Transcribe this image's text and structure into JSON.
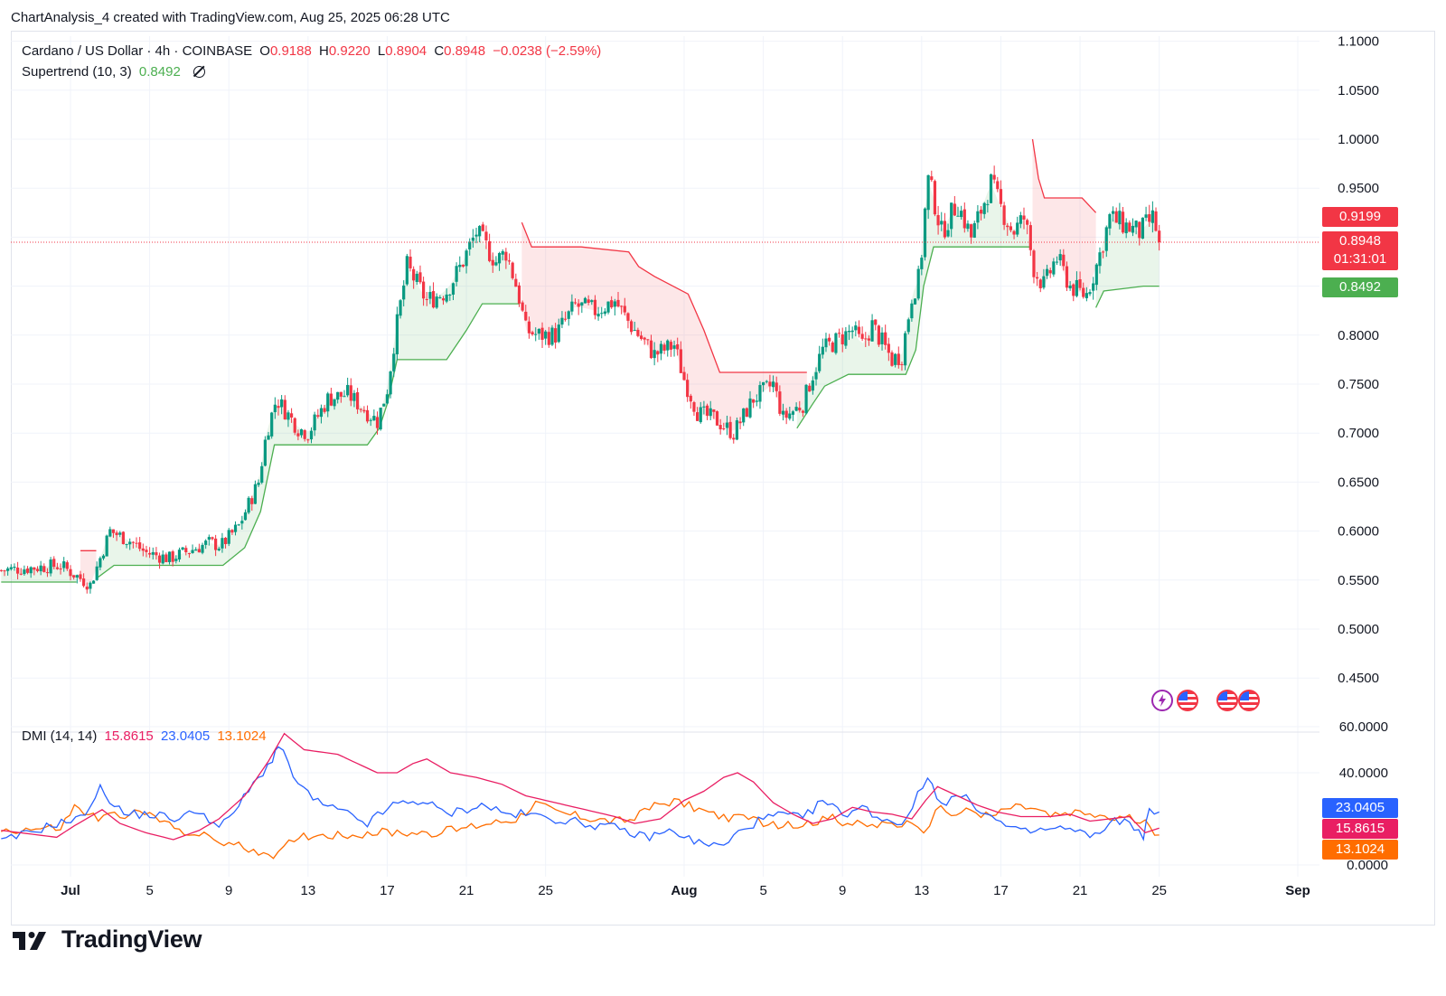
{
  "caption": "ChartAnalysis_4 created with TradingView.com, Aug 25, 2025 06:28 UTC",
  "brand": {
    "name": "TradingView",
    "logo": "tradingview-logo"
  },
  "colors": {
    "up": "#089981",
    "down": "#f23645",
    "supertrend_up": "#4caf50",
    "supertrend_down": "#f23645",
    "dmi_plus": "#2962ff",
    "dmi_minus": "#ff6d00",
    "adx": "#e91e63",
    "grid": "#f0f3fa"
  },
  "legend": {
    "symbol": "Cardano / US Dollar · 4h · COINBASE",
    "o_label": "O",
    "o_value": "0.9188",
    "h_label": "H",
    "h_value": "0.9220",
    "l_label": "L",
    "l_value": "0.8904",
    "c_label": "C",
    "c_value": "0.8948",
    "change": "−0.0238 (−2.59%)",
    "indicator_name": "Supertrend (10, 3)",
    "indicator_value": "0.8492",
    "indicator_icon": "eye-off-icon"
  },
  "dmi_legend": {
    "name": "DMI (14, 14)",
    "adx": "15.8615",
    "plus_di": "23.0405",
    "minus_di": "13.1024"
  },
  "price_tags": {
    "supertrend_upper": "0.9199",
    "last": "0.8948",
    "countdown": "01:31:01",
    "supertrend": "0.8492"
  },
  "dmi_tags": {
    "plus_di": "23.0405",
    "adx": "15.8615",
    "minus_di": "13.1024"
  },
  "event_icons": [
    "lightning-icon",
    "us-flag-icon",
    "us-flag-icon",
    "us-flag-icon"
  ],
  "chart_data": {
    "type": "candlestick",
    "price_axis": {
      "ticks": [
        "1.1000",
        "1.0500",
        "1.0000",
        "0.9500",
        "0.9000",
        "0.8500",
        "0.8000",
        "0.7500",
        "0.7000",
        "0.6500",
        "0.6000",
        "0.5500",
        "0.5000",
        "0.4500"
      ],
      "range": [
        0.405,
        1.105
      ]
    },
    "dmi_axis": {
      "ticks": [
        "60.0000",
        "40.0000",
        "0.0000"
      ],
      "range": [
        0,
        60
      ]
    },
    "time_axis": [
      "Jul",
      "5",
      "9",
      "13",
      "17",
      "21",
      "25",
      "Aug",
      "5",
      "9",
      "13",
      "17",
      "21",
      "25",
      "Sep"
    ],
    "time_axis_days": [
      1,
      5,
      9,
      13,
      17,
      21,
      25,
      32,
      36,
      40,
      44,
      48,
      52,
      56,
      63
    ],
    "first_candle_day": -2.5,
    "last_price": 0.8948,
    "close_path": [
      [
        -2.5,
        0.56
      ],
      [
        0.5,
        0.565
      ],
      [
        2.0,
        0.545
      ],
      [
        3.0,
        0.6
      ],
      [
        4.0,
        0.59
      ],
      [
        4.8,
        0.578
      ],
      [
        6.0,
        0.572
      ],
      [
        8.0,
        0.588
      ],
      [
        8.6,
        0.585
      ],
      [
        9.5,
        0.605
      ],
      [
        10.5,
        0.65
      ],
      [
        10.9,
        0.7
      ],
      [
        11.4,
        0.735
      ],
      [
        12.5,
        0.705
      ],
      [
        13.0,
        0.7
      ],
      [
        14.0,
        0.735
      ],
      [
        15.0,
        0.74
      ],
      [
        16.5,
        0.712
      ],
      [
        17.0,
        0.745
      ],
      [
        17.4,
        0.8
      ],
      [
        18.0,
        0.87
      ],
      [
        19.0,
        0.835
      ],
      [
        20.0,
        0.845
      ],
      [
        20.7,
        0.87
      ],
      [
        21.5,
        0.905
      ],
      [
        22.5,
        0.875
      ],
      [
        23.0,
        0.885
      ],
      [
        23.6,
        0.845
      ],
      [
        24.0,
        0.805
      ],
      [
        24.6,
        0.8
      ],
      [
        25.5,
        0.8
      ],
      [
        26.5,
        0.83
      ],
      [
        27.5,
        0.825
      ],
      [
        28.5,
        0.835
      ],
      [
        29.3,
        0.81
      ],
      [
        30.5,
        0.78
      ],
      [
        31.5,
        0.79
      ],
      [
        32.0,
        0.755
      ],
      [
        32.7,
        0.72
      ],
      [
        33.5,
        0.715
      ],
      [
        34.5,
        0.7
      ],
      [
        35.5,
        0.735
      ],
      [
        36.5,
        0.75
      ],
      [
        37.0,
        0.715
      ],
      [
        38.0,
        0.73
      ],
      [
        38.5,
        0.76
      ],
      [
        39.0,
        0.785
      ],
      [
        40.5,
        0.805
      ],
      [
        41.0,
        0.79
      ],
      [
        41.5,
        0.81
      ],
      [
        42.5,
        0.775
      ],
      [
        43.0,
        0.78
      ],
      [
        43.5,
        0.84
      ],
      [
        43.9,
        0.86
      ],
      [
        44.3,
        0.96
      ],
      [
        44.6,
        0.94
      ],
      [
        45.0,
        0.905
      ],
      [
        45.8,
        0.935
      ],
      [
        46.5,
        0.9
      ],
      [
        47.5,
        0.955
      ],
      [
        48.0,
        0.93
      ],
      [
        48.6,
        0.905
      ],
      [
        49.2,
        0.92
      ],
      [
        49.7,
        0.865
      ],
      [
        50.2,
        0.85
      ],
      [
        50.8,
        0.88
      ],
      [
        51.5,
        0.85
      ],
      [
        52.3,
        0.84
      ],
      [
        52.9,
        0.875
      ],
      [
        53.5,
        0.92
      ],
      [
        54.5,
        0.91
      ],
      [
        55.0,
        0.905
      ],
      [
        55.7,
        0.92
      ],
      [
        56.0,
        0.895
      ]
    ],
    "supertrend": [
      {
        "trend": "up",
        "points": [
          [
            -2.5,
            0.548
          ],
          [
            1.3,
            0.548
          ]
        ]
      },
      {
        "trend": "down",
        "points": [
          [
            1.5,
            0.58
          ],
          [
            2.3,
            0.58
          ]
        ]
      },
      {
        "trend": "up",
        "points": [
          [
            2.4,
            0.553
          ],
          [
            3.2,
            0.565
          ],
          [
            7.0,
            0.565
          ],
          [
            8.7,
            0.565
          ],
          [
            9.8,
            0.583
          ],
          [
            10.6,
            0.62
          ],
          [
            11.3,
            0.688
          ],
          [
            16.0,
            0.688
          ],
          [
            16.6,
            0.705
          ],
          [
            17.0,
            0.73
          ],
          [
            17.5,
            0.775
          ],
          [
            20.0,
            0.775
          ],
          [
            21.0,
            0.805
          ],
          [
            21.8,
            0.832
          ],
          [
            23.7,
            0.832
          ]
        ]
      },
      {
        "trend": "down",
        "points": [
          [
            23.8,
            0.915
          ],
          [
            24.3,
            0.89
          ],
          [
            26.8,
            0.89
          ],
          [
            29.2,
            0.885
          ],
          [
            29.7,
            0.87
          ],
          [
            30.5,
            0.86
          ],
          [
            32.2,
            0.842
          ],
          [
            33.0,
            0.805
          ],
          [
            33.8,
            0.762
          ],
          [
            38.2,
            0.762
          ]
        ]
      },
      {
        "trend": "up",
        "points": [
          [
            37.7,
            0.705
          ],
          [
            38.5,
            0.73
          ],
          [
            39.1,
            0.748
          ],
          [
            40.3,
            0.76
          ],
          [
            43.2,
            0.76
          ],
          [
            43.7,
            0.785
          ],
          [
            44.1,
            0.85
          ],
          [
            44.6,
            0.89
          ],
          [
            48.6,
            0.89
          ],
          [
            49.5,
            0.89
          ]
        ]
      },
      {
        "trend": "down",
        "points": [
          [
            49.6,
            1.0
          ],
          [
            49.9,
            0.96
          ],
          [
            50.2,
            0.94
          ],
          [
            52.1,
            0.94
          ],
          [
            52.8,
            0.925
          ]
        ]
      },
      {
        "trend": "up",
        "points": [
          [
            52.8,
            0.828
          ],
          [
            53.2,
            0.845
          ],
          [
            55.2,
            0.85
          ],
          [
            56.0,
            0.85
          ]
        ]
      }
    ],
    "dmi": {
      "plus_di": [
        [
          -2.5,
          10
        ],
        [
          0.3,
          18
        ],
        [
          1.5,
          20
        ],
        [
          2.5,
          33
        ],
        [
          3.7,
          22
        ],
        [
          5.0,
          22
        ],
        [
          6.5,
          20
        ],
        [
          7.5,
          24
        ],
        [
          8.5,
          16
        ],
        [
          9.0,
          20
        ],
        [
          10.0,
          32
        ],
        [
          11.2,
          46
        ],
        [
          11.5,
          52
        ],
        [
          12.5,
          35
        ],
        [
          13.5,
          27
        ],
        [
          15.0,
          22
        ],
        [
          16.0,
          18
        ],
        [
          17.3,
          26
        ],
        [
          18.8,
          28
        ],
        [
          20.0,
          22
        ],
        [
          21.3,
          25
        ],
        [
          22.0,
          26
        ],
        [
          23.0,
          22
        ],
        [
          24.0,
          22
        ],
        [
          25.5,
          20
        ],
        [
          27.0,
          18
        ],
        [
          28.5,
          16
        ],
        [
          30.0,
          12
        ],
        [
          31.5,
          15
        ],
        [
          32.5,
          10
        ],
        [
          34.0,
          8
        ],
        [
          35.0,
          16
        ],
        [
          36.0,
          20
        ],
        [
          37.0,
          22
        ],
        [
          38.0,
          20
        ],
        [
          39.0,
          28
        ],
        [
          40.0,
          22
        ],
        [
          41.0,
          25
        ],
        [
          42.0,
          20
        ],
        [
          43.0,
          18
        ],
        [
          43.8,
          30
        ],
        [
          44.3,
          38
        ],
        [
          45.0,
          27
        ],
        [
          46.0,
          30
        ],
        [
          47.0,
          24
        ],
        [
          48.0,
          18
        ],
        [
          49.0,
          14
        ],
        [
          50.0,
          15
        ],
        [
          51.0,
          16
        ],
        [
          52.0,
          14
        ],
        [
          53.0,
          12
        ],
        [
          53.5,
          20
        ],
        [
          54.5,
          18
        ],
        [
          55.2,
          13
        ],
        [
          55.5,
          23
        ],
        [
          56.0,
          23
        ]
      ],
      "minus_di": [
        [
          -2.5,
          15
        ],
        [
          0.5,
          16
        ],
        [
          1.2,
          25
        ],
        [
          2.4,
          20
        ],
        [
          3.5,
          22
        ],
        [
          5.0,
          22
        ],
        [
          6.0,
          17
        ],
        [
          7.5,
          13
        ],
        [
          9.0,
          9
        ],
        [
          10.5,
          6
        ],
        [
          11.5,
          4
        ],
        [
          12.3,
          12
        ],
        [
          13.5,
          13
        ],
        [
          15.0,
          13
        ],
        [
          16.5,
          14
        ],
        [
          18.0,
          14
        ],
        [
          19.5,
          14
        ],
        [
          21.0,
          16
        ],
        [
          22.0,
          18
        ],
        [
          23.5,
          20
        ],
        [
          24.5,
          27
        ],
        [
          25.5,
          23
        ],
        [
          27.5,
          20
        ],
        [
          28.5,
          19
        ],
        [
          29.5,
          20
        ],
        [
          30.5,
          26
        ],
        [
          31.5,
          28
        ],
        [
          32.5,
          25
        ],
        [
          33.5,
          22
        ],
        [
          34.5,
          20
        ],
        [
          35.5,
          20
        ],
        [
          36.5,
          17
        ],
        [
          37.5,
          17
        ],
        [
          38.5,
          19
        ],
        [
          39.5,
          20
        ],
        [
          40.5,
          18
        ],
        [
          41.5,
          17
        ],
        [
          42.5,
          18
        ],
        [
          43.5,
          17
        ],
        [
          44.1,
          12
        ],
        [
          44.7,
          25
        ],
        [
          45.5,
          22
        ],
        [
          46.5,
          24
        ],
        [
          47.5,
          21
        ],
        [
          48.5,
          25
        ],
        [
          49.5,
          25
        ],
        [
          50.5,
          21
        ],
        [
          51.5,
          22
        ],
        [
          52.5,
          22
        ],
        [
          53.5,
          20
        ],
        [
          54.5,
          20
        ],
        [
          55.3,
          18
        ],
        [
          56.0,
          13
        ]
      ],
      "adx": [
        [
          -2.5,
          15
        ],
        [
          0.3,
          12
        ],
        [
          1.2,
          17
        ],
        [
          2.6,
          24
        ],
        [
          3.5,
          18
        ],
        [
          4.8,
          14
        ],
        [
          6.2,
          11
        ],
        [
          7.5,
          15
        ],
        [
          8.5,
          20
        ],
        [
          9.8,
          30
        ],
        [
          11.0,
          45
        ],
        [
          11.8,
          57
        ],
        [
          12.8,
          50
        ],
        [
          14.5,
          48
        ],
        [
          15.5,
          44
        ],
        [
          16.5,
          40
        ],
        [
          17.5,
          40
        ],
        [
          18.3,
          44
        ],
        [
          19.0,
          46
        ],
        [
          20.2,
          40
        ],
        [
          21.5,
          38
        ],
        [
          22.8,
          35
        ],
        [
          24.0,
          30
        ],
        [
          25.5,
          27
        ],
        [
          27.0,
          24
        ],
        [
          28.5,
          21
        ],
        [
          29.5,
          18
        ],
        [
          30.8,
          20
        ],
        [
          32.0,
          28
        ],
        [
          33.0,
          32
        ],
        [
          34.0,
          38
        ],
        [
          34.7,
          40
        ],
        [
          35.5,
          36
        ],
        [
          36.5,
          27
        ],
        [
          37.5,
          22
        ],
        [
          38.5,
          18
        ],
        [
          39.5,
          20
        ],
        [
          40.5,
          25
        ],
        [
          41.5,
          23
        ],
        [
          42.5,
          22
        ],
        [
          43.5,
          20
        ],
        [
          44.2,
          28
        ],
        [
          44.8,
          34
        ],
        [
          45.8,
          30
        ],
        [
          46.8,
          26
        ],
        [
          47.8,
          23
        ],
        [
          49.0,
          21
        ],
        [
          50.5,
          21
        ],
        [
          51.5,
          22
        ],
        [
          52.5,
          19
        ],
        [
          53.5,
          20
        ],
        [
          54.5,
          21
        ],
        [
          55.3,
          14
        ],
        [
          56.0,
          16
        ]
      ]
    }
  }
}
